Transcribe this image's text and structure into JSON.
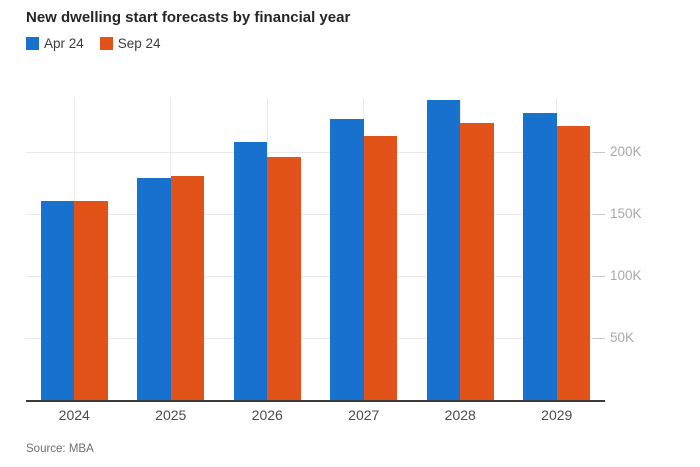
{
  "title": "New dwelling start forecasts by financial year",
  "source": "Source: MBA",
  "chart_data": {
    "type": "bar",
    "title": "New dwelling start forecasts by financial year",
    "categories": [
      "2024",
      "2025",
      "2026",
      "2027",
      "2028",
      "2029"
    ],
    "series": [
      {
        "name": "Apr 24",
        "color": "#1872cd",
        "values": [
          161000,
          179000,
          208000,
          227000,
          242000,
          232000
        ]
      },
      {
        "name": "Sep 24",
        "color": "#e2531a",
        "values": [
          161000,
          181000,
          196000,
          213000,
          224000,
          221000
        ]
      }
    ],
    "xlabel": "",
    "ylabel": "",
    "y_tick_values": [
      50000,
      100000,
      150000,
      200000
    ],
    "y_tick_labels": [
      "50K",
      "100K",
      "150K",
      "200K"
    ],
    "ylim": [
      0,
      243000
    ],
    "grid": true,
    "legend_position": "top-left",
    "y_axis_side": "right",
    "footnote": "Source: MBA"
  }
}
